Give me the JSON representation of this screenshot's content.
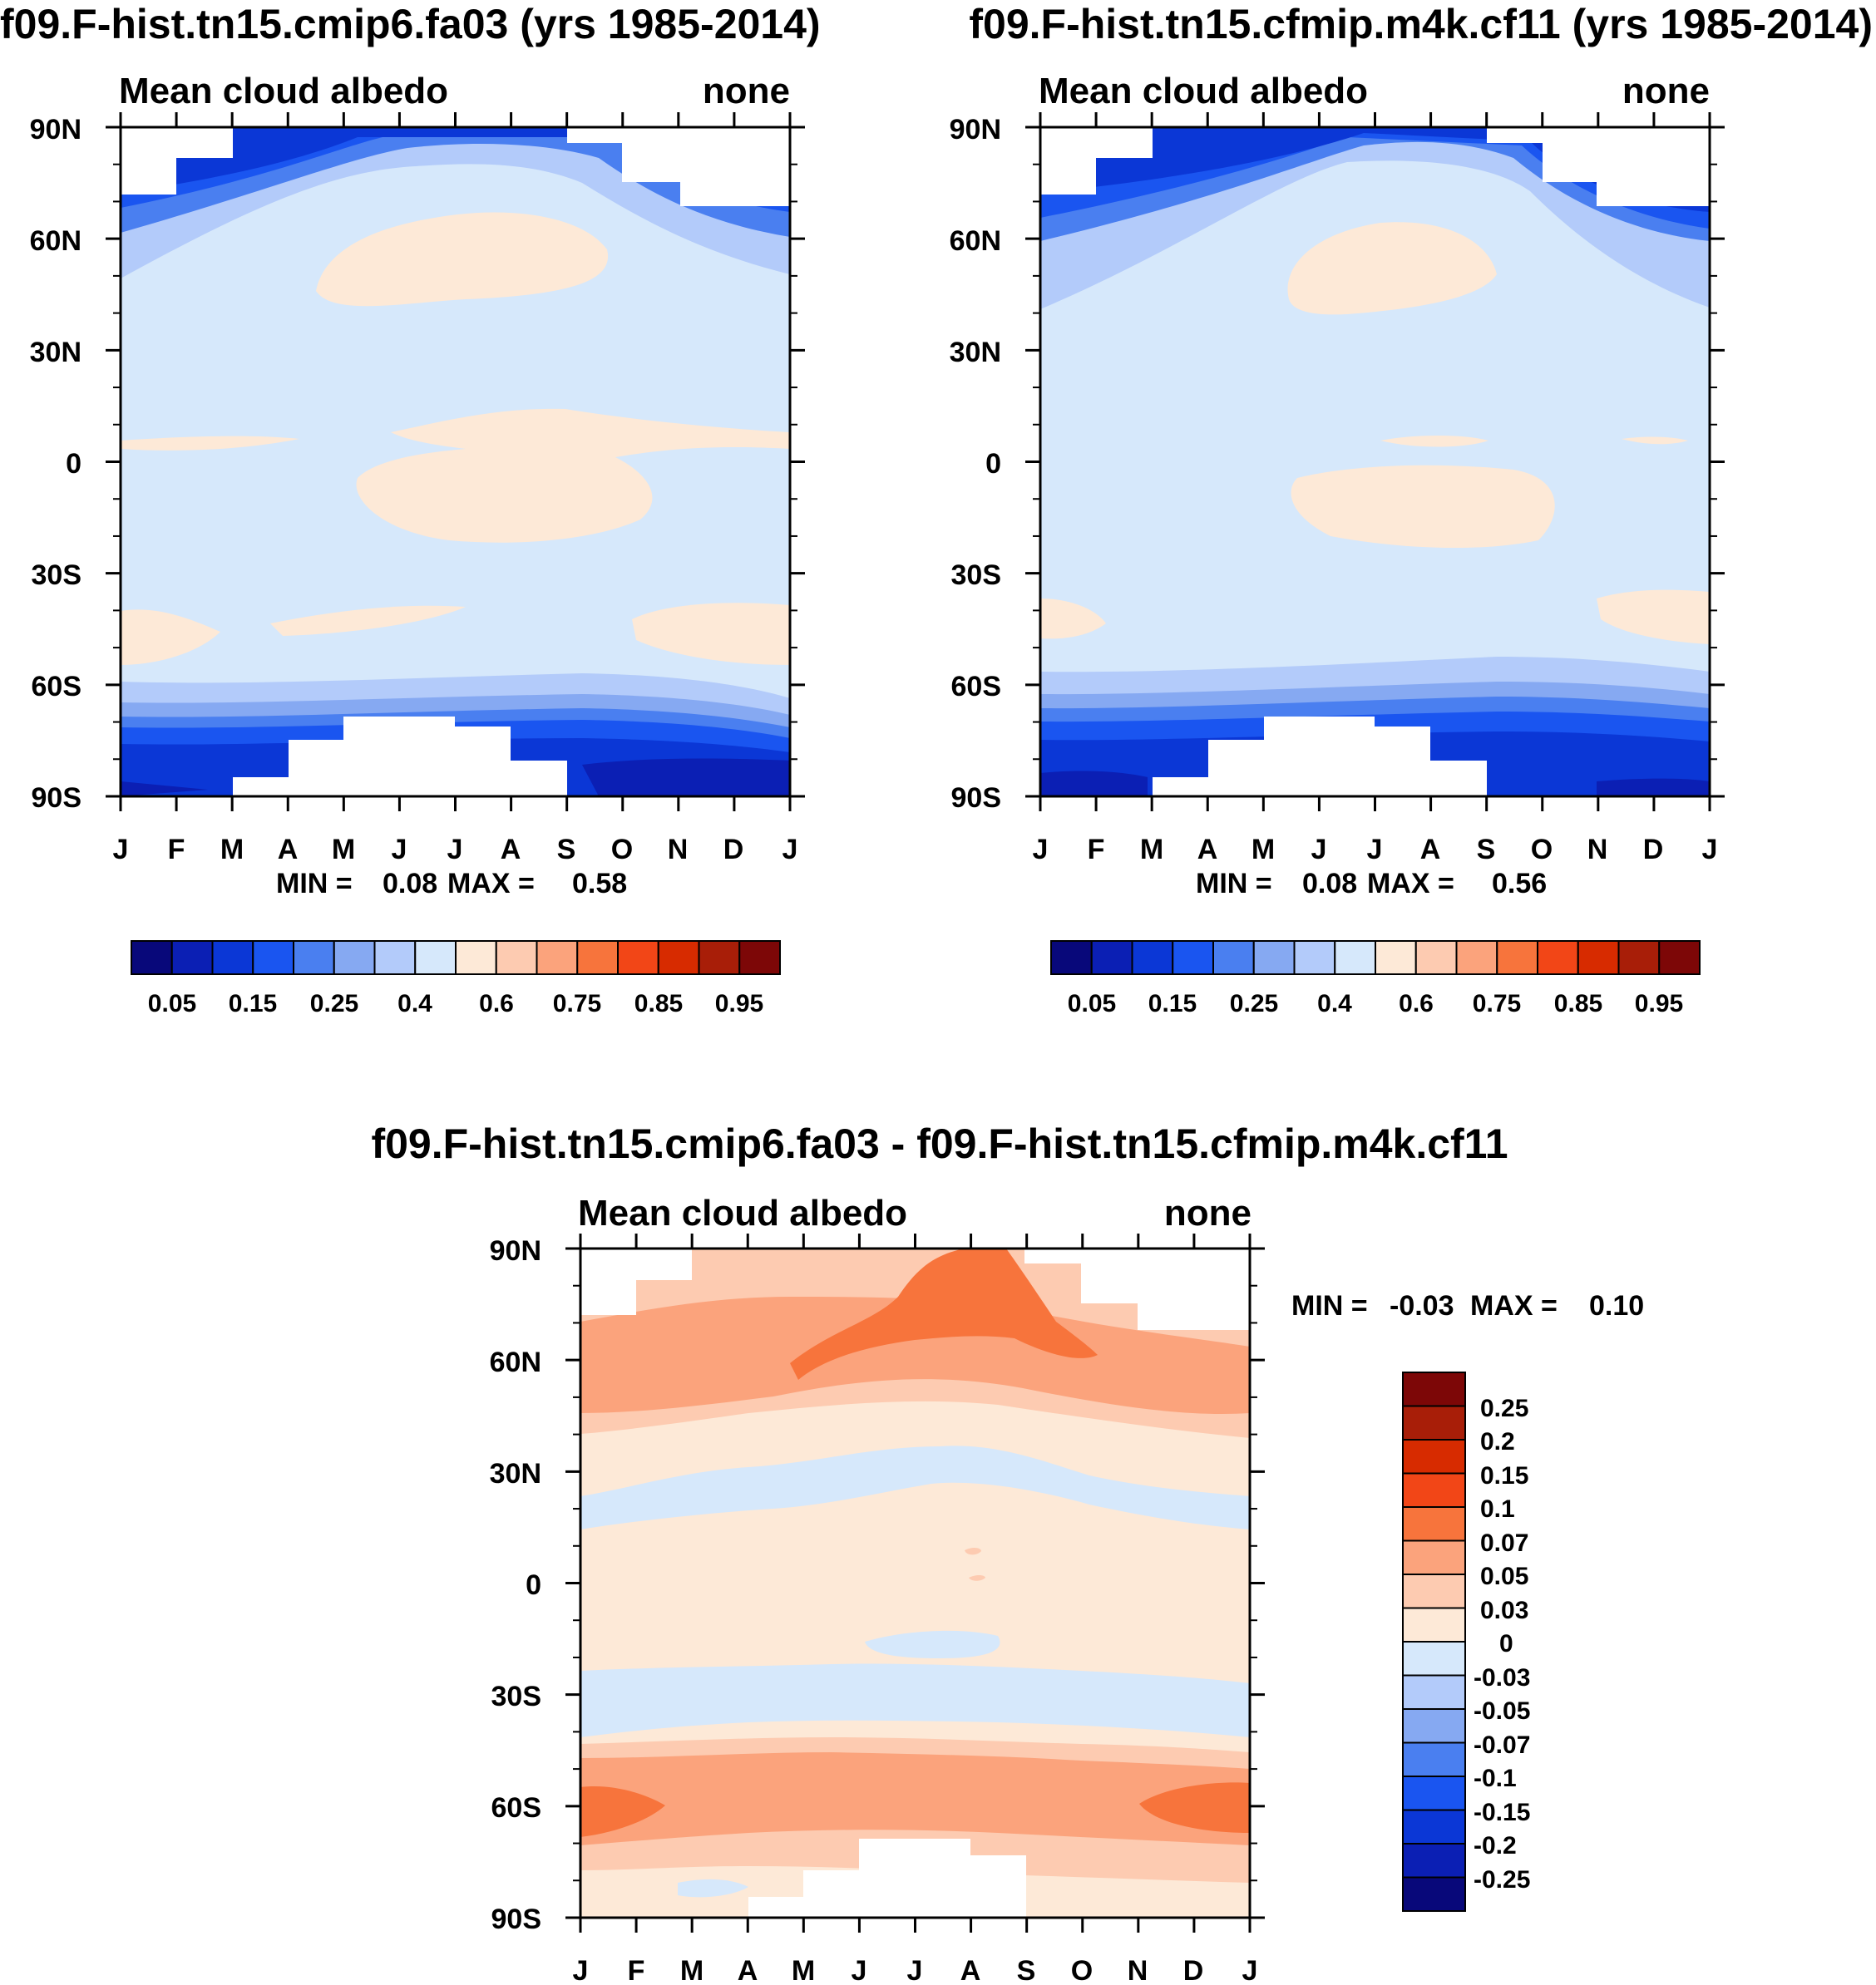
{
  "colors": {
    "palette": [
      "#08087a",
      "#0b1fb4",
      "#0b37d6",
      "#1a55f0",
      "#4a7ff0",
      "#86a9f2",
      "#b3cbfa",
      "#d6e8fb",
      "#fde9d7",
      "#fdcbb1",
      "#fba37c",
      "#f7743c",
      "#f24617",
      "#d72b00",
      "#a81e08",
      "#7d0707"
    ]
  },
  "chart_data": [
    {
      "type": "contour",
      "title": "f09.F-hist.tn15.cmip6.fa03 (yrs 1985-2014)",
      "left_label": "Mean cloud albedo",
      "right_label": "none",
      "x_ticks": [
        "J",
        "F",
        "M",
        "A",
        "M",
        "J",
        "J",
        "A",
        "S",
        "O",
        "N",
        "D",
        "J"
      ],
      "y_ticks": [
        "90N",
        "60N",
        "30N",
        "0",
        "30S",
        "60S",
        "90S"
      ],
      "min_label": "MIN =",
      "min_value": "0.08",
      "max_label": "MAX =",
      "max_value": "0.58",
      "colorbar_labels": [
        "0.05",
        "0.15",
        "0.25",
        "0.4",
        "0.6",
        "0.75",
        "0.85",
        "0.95"
      ]
    },
    {
      "type": "contour",
      "title": "f09.F-hist.tn15.cfmip.m4k.cf11 (yrs 1985-2014)",
      "left_label": "Mean cloud albedo",
      "right_label": "none",
      "x_ticks": [
        "J",
        "F",
        "M",
        "A",
        "M",
        "J",
        "J",
        "A",
        "S",
        "O",
        "N",
        "D",
        "J"
      ],
      "y_ticks": [
        "90N",
        "60N",
        "30N",
        "0",
        "30S",
        "60S",
        "90S"
      ],
      "min_label": "MIN =",
      "min_value": "0.08",
      "max_label": "MAX =",
      "max_value": "0.56",
      "colorbar_labels": [
        "0.05",
        "0.15",
        "0.25",
        "0.4",
        "0.6",
        "0.75",
        "0.85",
        "0.95"
      ]
    },
    {
      "type": "contour",
      "title": "f09.F-hist.tn15.cmip6.fa03 - f09.F-hist.tn15.cfmip.m4k.cf11",
      "left_label": "Mean cloud albedo",
      "right_label": "none",
      "x_ticks": [
        "J",
        "F",
        "M",
        "A",
        "M",
        "J",
        "J",
        "A",
        "S",
        "O",
        "N",
        "D",
        "J"
      ],
      "y_ticks": [
        "90N",
        "60N",
        "30N",
        "0",
        "30S",
        "60S",
        "90S"
      ],
      "min_label": "MIN =",
      "min_value": "-0.03",
      "max_label": "MAX =",
      "max_value": "0.10",
      "colorbar_labels": [
        "0.25",
        "0.2",
        "0.15",
        "0.1",
        "0.07",
        "0.05",
        "0.03",
        "0",
        "-0.03",
        "-0.05",
        "-0.07",
        "-0.1",
        "-0.15",
        "-0.2",
        "-0.25"
      ]
    }
  ]
}
